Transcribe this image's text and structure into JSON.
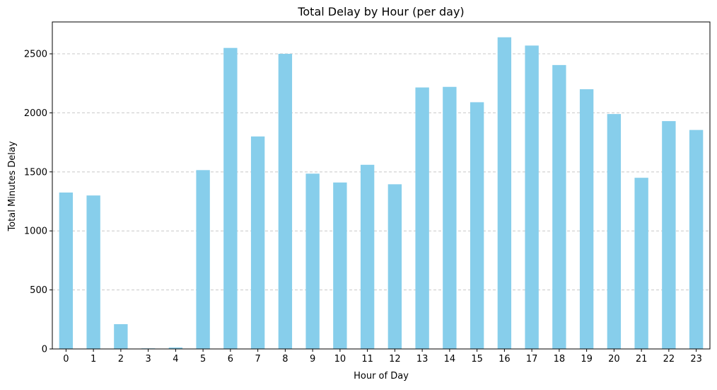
{
  "chart_data": {
    "type": "bar",
    "title": "Total Delay by Hour (per day)",
    "xlabel": "Hour of Day",
    "ylabel": "Total Minutes Delay",
    "categories": [
      "0",
      "1",
      "2",
      "3",
      "4",
      "5",
      "6",
      "7",
      "8",
      "9",
      "10",
      "11",
      "12",
      "13",
      "14",
      "15",
      "16",
      "17",
      "18",
      "19",
      "20",
      "21",
      "22",
      "23"
    ],
    "values": [
      1325,
      1300,
      210,
      5,
      12,
      1515,
      2550,
      1800,
      2500,
      1485,
      1410,
      1560,
      1395,
      2215,
      2220,
      2090,
      2640,
      2570,
      2405,
      2200,
      1990,
      1450,
      1930,
      1855
    ],
    "ylim": [
      0,
      2770
    ],
    "yticks": [
      0,
      500,
      1000,
      1500,
      2000,
      2500
    ],
    "grid": "y-dashed",
    "legend": "none",
    "colors": {
      "bar": "#87ceeb",
      "grid": "#c8c8c8",
      "axis": "#000000"
    }
  }
}
